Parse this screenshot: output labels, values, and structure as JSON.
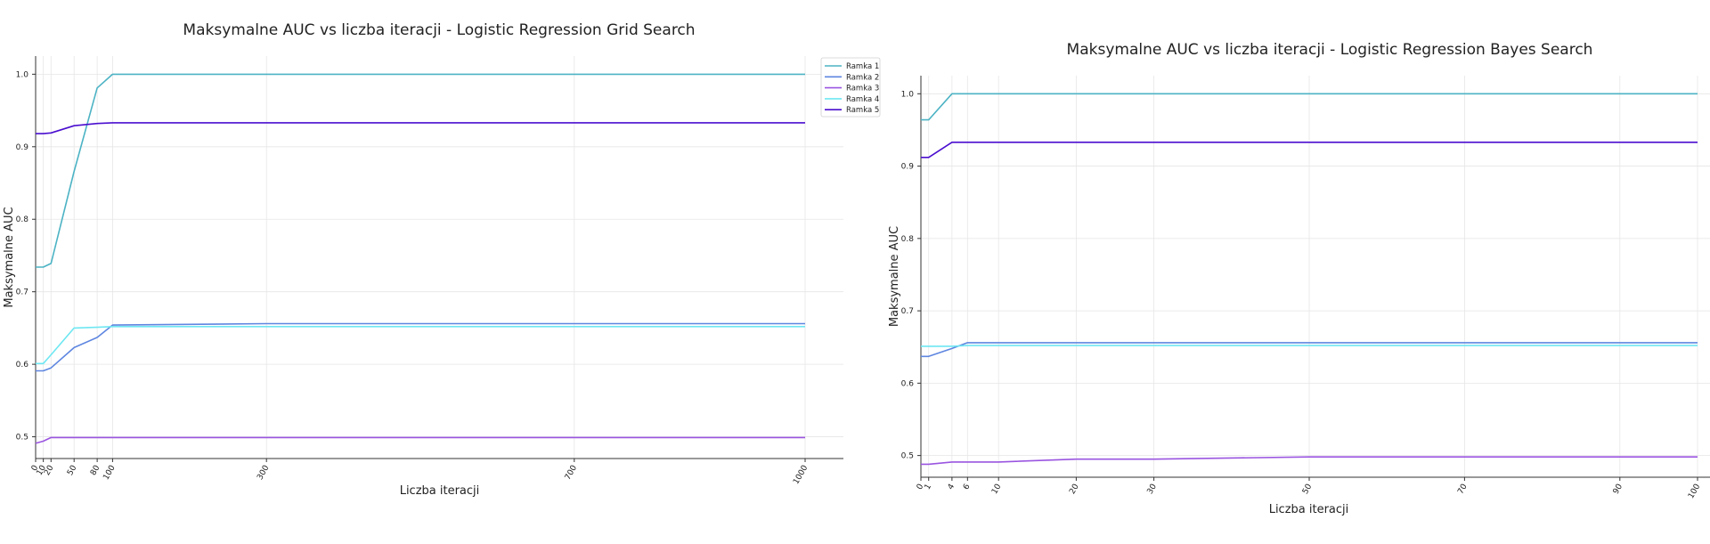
{
  "chart_data": [
    {
      "type": "line",
      "title": "Maksymalne AUC vs liczba iteracji - Logistic Regression Grid Search",
      "xlabel": "Liczba iteracji",
      "ylabel": "Maksymalne AUC",
      "x_ticks": [
        0,
        10,
        20,
        50,
        80,
        100,
        300,
        700,
        1000
      ],
      "y_ticks": [
        "0.5",
        "0.6",
        "0.7",
        "0.8",
        "0.9",
        "1.0"
      ],
      "xlim": [
        0,
        1050
      ],
      "ylim": [
        0.47,
        1.025
      ],
      "grid": true,
      "legend": "top-right",
      "x": [
        0,
        10,
        20,
        50,
        80,
        100,
        300,
        700,
        1000
      ],
      "series": [
        {
          "name": "Ramka 1",
          "color": "#4cb3c4",
          "values": [
            0.734,
            0.734,
            0.739,
            0.866,
            0.981,
            1.0,
            1.0,
            1.0,
            1.0
          ]
        },
        {
          "name": "Ramka 2",
          "color": "#5e86e0",
          "values": [
            0.591,
            0.591,
            0.595,
            0.623,
            0.637,
            0.654,
            0.656,
            0.656,
            0.656
          ]
        },
        {
          "name": "Ramka 3",
          "color": "#9a55e0",
          "values": [
            0.491,
            0.494,
            0.499,
            0.499,
            0.499,
            0.499,
            0.499,
            0.499,
            0.499
          ]
        },
        {
          "name": "Ramka 4",
          "color": "#6ee7f2",
          "values": [
            0.601,
            0.601,
            0.613,
            0.65,
            0.651,
            0.652,
            0.652,
            0.652,
            0.652
          ]
        },
        {
          "name": "Ramka 5",
          "color": "#4a0ecf",
          "values": [
            0.918,
            0.918,
            0.919,
            0.929,
            0.932,
            0.933,
            0.933,
            0.933,
            0.933
          ]
        }
      ]
    },
    {
      "type": "line",
      "title": "Maksymalne AUC vs liczba iteracji - Logistic Regression Bayes Search",
      "xlabel": "Liczba iteracji",
      "ylabel": "Maksymalne AUC",
      "x_ticks": [
        0,
        1,
        4,
        6,
        10,
        20,
        30,
        50,
        70,
        90,
        100
      ],
      "y_ticks": [
        "0.5",
        "0.6",
        "0.7",
        "0.8",
        "0.9",
        "1.0"
      ],
      "xlim": [
        0,
        100
      ],
      "ylim": [
        0.47,
        1.025
      ],
      "grid": true,
      "x": [
        0,
        1,
        4,
        6,
        10,
        20,
        30,
        50,
        70,
        90,
        100
      ],
      "series": [
        {
          "color": "#4cb3c4",
          "values": [
            0.964,
            0.964,
            1.0,
            1.0,
            1.0,
            1.0,
            1.0,
            1.0,
            1.0,
            1.0,
            1.0
          ]
        },
        {
          "color": "#5e86e0",
          "values": [
            0.637,
            0.637,
            0.648,
            0.656,
            0.656,
            0.656,
            0.656,
            0.656,
            0.656,
            0.656,
            0.656
          ]
        },
        {
          "color": "#9a55e0",
          "values": [
            0.488,
            0.488,
            0.491,
            0.491,
            0.491,
            0.495,
            0.495,
            0.498,
            0.498,
            0.498,
            0.498
          ]
        },
        {
          "color": "#6ee7f2",
          "values": [
            0.651,
            0.651,
            0.651,
            0.652,
            0.652,
            0.652,
            0.652,
            0.652,
            0.652,
            0.652,
            0.652
          ]
        },
        {
          "color": "#4a0ecf",
          "values": [
            0.912,
            0.912,
            0.933,
            0.933,
            0.933,
            0.933,
            0.933,
            0.933,
            0.933,
            0.933,
            0.933
          ]
        }
      ]
    }
  ]
}
